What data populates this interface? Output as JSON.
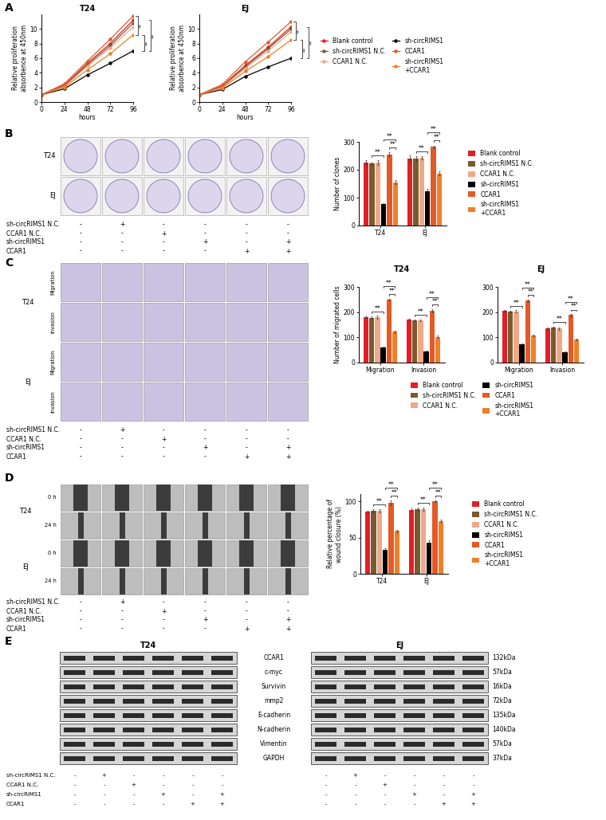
{
  "panel_labels": [
    "A",
    "B",
    "C",
    "D",
    "E"
  ],
  "chart_data": [
    {
      "type": "line",
      "title": "T24",
      "xlabel": "hours",
      "ylabel": "Relative proliferation\nabsorbence at 450nm",
      "x": [
        0,
        24,
        48,
        72,
        96
      ],
      "xlim": [
        0,
        96
      ],
      "xticks": [
        0,
        24,
        48,
        72,
        96
      ],
      "ylim": [
        0,
        12
      ],
      "yticks": [
        0,
        2,
        4,
        6,
        8,
        10
      ],
      "marker": "circle",
      "legend": "right",
      "series": [
        {
          "name": "Blank control",
          "color": "#e41e26",
          "values": [
            1,
            2.3,
            5.3,
            8.0,
            11.2
          ]
        },
        {
          "name": "sh-circRIMS1 N.C.",
          "color": "#7b5a2e",
          "values": [
            1,
            2.2,
            5.1,
            7.7,
            10.8
          ]
        },
        {
          "name": "CCAR1 N.C.",
          "color": "#f0a887",
          "values": [
            1,
            2.1,
            4.9,
            7.4,
            10.3
          ]
        },
        {
          "name": "sh-circRIMS1",
          "color": "#000000",
          "values": [
            1,
            1.8,
            3.7,
            5.3,
            7.0
          ]
        },
        {
          "name": "CCAR1",
          "color": "#e45a27",
          "values": [
            1,
            2.5,
            5.6,
            8.6,
            11.8
          ]
        },
        {
          "name": "sh-circRIMS1\n+CCAR1",
          "color": "#f07f2a",
          "values": [
            1,
            2.0,
            4.4,
            6.6,
            9.2
          ]
        }
      ],
      "annotations": [
        {
          "text": "**",
          "between": [
            "CCAR1",
            "sh-circRIMS1\n+CCAR1"
          ]
        },
        {
          "text": "**",
          "between": [
            "sh-circRIMS1\n+CCAR1",
            "sh-circRIMS1"
          ]
        },
        {
          "text": "**",
          "between": [
            "Blank control",
            "sh-circRIMS1"
          ]
        }
      ]
    },
    {
      "type": "line",
      "title": "EJ",
      "xlabel": "hours",
      "ylabel": "Relative proliferation\nabsorbence at 450nm",
      "x": [
        0,
        24,
        48,
        72,
        96
      ],
      "xlim": [
        0,
        96
      ],
      "xticks": [
        0,
        24,
        48,
        72,
        96
      ],
      "ylim": [
        0,
        12
      ],
      "yticks": [
        0,
        2,
        4,
        6,
        8,
        10
      ],
      "marker": "circle",
      "series": [
        {
          "name": "Blank control",
          "color": "#e41e26",
          "values": [
            1,
            2.2,
            5.0,
            7.5,
            10.3
          ]
        },
        {
          "name": "sh-circRIMS1 N.C.",
          "color": "#7b5a2e",
          "values": [
            1,
            2.1,
            4.8,
            7.3,
            10.0
          ]
        },
        {
          "name": "CCAR1 N.C.",
          "color": "#f0a887",
          "values": [
            1,
            2.0,
            4.6,
            7.0,
            9.6
          ]
        },
        {
          "name": "sh-circRIMS1",
          "color": "#000000",
          "values": [
            1,
            1.7,
            3.5,
            4.8,
            6.0
          ]
        },
        {
          "name": "CCAR1",
          "color": "#e45a27",
          "values": [
            1,
            2.4,
            5.5,
            8.2,
            11.0
          ]
        },
        {
          "name": "sh-circRIMS1\n+CCAR1",
          "color": "#f07f2a",
          "values": [
            1,
            1.9,
            4.2,
            6.2,
            8.5
          ]
        }
      ],
      "annotations": [
        {
          "text": "**",
          "between": [
            "CCAR1",
            "sh-circRIMS1\n+CCAR1"
          ]
        },
        {
          "text": "**",
          "between": [
            "sh-circRIMS1\n+CCAR1",
            "sh-circRIMS1"
          ]
        },
        {
          "text": "**",
          "between": [
            "Blank control",
            "sh-circRIMS1"
          ]
        }
      ]
    },
    {
      "type": "bar",
      "ylabel": "Number of clones",
      "categories": [
        "T24",
        "EJ"
      ],
      "ylim": [
        0,
        300
      ],
      "yticks": [
        0,
        100,
        200,
        300
      ],
      "legend": "right",
      "series": [
        {
          "name": "Blank control",
          "color": "#e41e26",
          "values": [
            225,
            240
          ],
          "errors": [
            9,
            12
          ]
        },
        {
          "name": "sh-circRIMS1 N.C.",
          "color": "#7b5a2e",
          "values": [
            222,
            240
          ],
          "errors": [
            5,
            8
          ]
        },
        {
          "name": "CCAR1 N.C.",
          "color": "#f0a887",
          "values": [
            225,
            243
          ],
          "errors": [
            8,
            6
          ]
        },
        {
          "name": "sh-circRIMS1",
          "color": "#000000",
          "values": [
            78,
            122
          ],
          "errors": [
            3,
            10
          ]
        },
        {
          "name": "CCAR1",
          "color": "#e45a27",
          "values": [
            255,
            282
          ],
          "errors": [
            7,
            5
          ]
        },
        {
          "name": "sh-circRIMS1\n+CCAR1",
          "color": "#f07f2a",
          "values": [
            155,
            187
          ],
          "errors": [
            7,
            8
          ]
        }
      ],
      "annotations": [
        {
          "text": "**",
          "category": "T24",
          "between": [
            "sh-circRIMS1 N.C.",
            "sh-circRIMS1"
          ]
        },
        {
          "text": "**",
          "category": "T24",
          "between": [
            "CCAR1",
            "sh-circRIMS1\n+CCAR1"
          ]
        },
        {
          "text": "**",
          "category": "T24",
          "between": [
            "sh-circRIMS1",
            "sh-circRIMS1\n+CCAR1"
          ]
        },
        {
          "text": "**",
          "category": "EJ",
          "between": [
            "sh-circRIMS1 N.C.",
            "sh-circRIMS1"
          ]
        },
        {
          "text": "**",
          "category": "EJ",
          "between": [
            "CCAR1",
            "sh-circRIMS1\n+CCAR1"
          ]
        },
        {
          "text": "**",
          "category": "EJ",
          "between": [
            "sh-circRIMS1",
            "sh-circRIMS1\n+CCAR1"
          ]
        }
      ]
    },
    {
      "type": "bar",
      "title": "T24",
      "ylabel": "Number of migrated cells",
      "categories": [
        "Migration",
        "Invasion"
      ],
      "ylim": [
        0,
        300
      ],
      "yticks": [
        0,
        100,
        200,
        300
      ],
      "legend": "lower",
      "series": [
        {
          "name": "Blank control",
          "color": "#e41e26",
          "values": [
            180,
            170
          ],
          "errors": [
            3,
            4
          ]
        },
        {
          "name": "sh-circRIMS1 N.C.",
          "color": "#7b5a2e",
          "values": [
            178,
            168
          ],
          "errors": [
            4,
            3
          ]
        },
        {
          "name": "CCAR1 N.C.",
          "color": "#f0a887",
          "values": [
            180,
            168
          ],
          "errors": [
            5,
            4
          ]
        },
        {
          "name": "sh-circRIMS1",
          "color": "#000000",
          "values": [
            60,
            45
          ],
          "errors": [
            4,
            3
          ]
        },
        {
          "name": "CCAR1",
          "color": "#e45a27",
          "values": [
            250,
            205
          ],
          "errors": [
            4,
            6
          ]
        },
        {
          "name": "sh-circRIMS1\n+CCAR1",
          "color": "#f07f2a",
          "values": [
            122,
            102
          ],
          "errors": [
            4,
            4
          ]
        }
      ],
      "annotations": [
        {
          "text": "**",
          "category": "Migration",
          "between": [
            "sh-circRIMS1 N.C.",
            "sh-circRIMS1"
          ]
        },
        {
          "text": "**",
          "category": "Migration",
          "between": [
            "CCAR1",
            "sh-circRIMS1\n+CCAR1"
          ]
        },
        {
          "text": "**",
          "category": "Migration",
          "between": [
            "sh-circRIMS1",
            "sh-circRIMS1\n+CCAR1"
          ]
        },
        {
          "text": "**",
          "category": "Invasion",
          "between": [
            "sh-circRIMS1 N.C.",
            "sh-circRIMS1"
          ]
        },
        {
          "text": "**",
          "category": "Invasion",
          "between": [
            "CCAR1",
            "sh-circRIMS1\n+CCAR1"
          ]
        },
        {
          "text": "**",
          "category": "Invasion",
          "between": [
            "sh-circRIMS1",
            "sh-circRIMS1\n+CCAR1"
          ]
        }
      ]
    },
    {
      "type": "bar",
      "title": "EJ",
      "categories": [
        "Migration",
        "Invasion"
      ],
      "ylim": [
        0,
        300
      ],
      "yticks": [
        0,
        100,
        200,
        300
      ],
      "series": [
        {
          "name": "Blank control",
          "color": "#e41e26",
          "values": [
            205,
            135
          ],
          "errors": [
            4,
            4
          ]
        },
        {
          "name": "sh-circRIMS1 N.C.",
          "color": "#7b5a2e",
          "values": [
            203,
            138
          ],
          "errors": [
            3,
            5
          ]
        },
        {
          "name": "CCAR1 N.C.",
          "color": "#f0a887",
          "values": [
            203,
            135
          ],
          "errors": [
            4,
            4
          ]
        },
        {
          "name": "sh-circRIMS1",
          "color": "#000000",
          "values": [
            72,
            40
          ],
          "errors": [
            3,
            4
          ]
        },
        {
          "name": "CCAR1",
          "color": "#e45a27",
          "values": [
            245,
            188
          ],
          "errors": [
            4,
            4
          ]
        },
        {
          "name": "sh-circRIMS1\n+CCAR1",
          "color": "#f07f2a",
          "values": [
            108,
            92
          ],
          "errors": [
            3,
            3
          ]
        }
      ],
      "annotations": [
        {
          "text": "**",
          "category": "Migration",
          "between": [
            "sh-circRIMS1 N.C.",
            "sh-circRIMS1"
          ]
        },
        {
          "text": "**",
          "category": "Migration",
          "between": [
            "CCAR1",
            "sh-circRIMS1\n+CCAR1"
          ]
        },
        {
          "text": "**",
          "category": "Migration",
          "between": [
            "sh-circRIMS1",
            "sh-circRIMS1\n+CCAR1"
          ]
        },
        {
          "text": "**",
          "category": "Invasion",
          "between": [
            "sh-circRIMS1 N.C.",
            "sh-circRIMS1"
          ]
        },
        {
          "text": "**",
          "category": "Invasion",
          "between": [
            "CCAR1",
            "sh-circRIMS1\n+CCAR1"
          ]
        },
        {
          "text": "**",
          "category": "Invasion",
          "between": [
            "sh-circRIMS1",
            "sh-circRIMS1\n+CCAR1"
          ]
        }
      ]
    },
    {
      "type": "bar",
      "ylabel": "Relative percentage of\nwound closure (%)",
      "categories": [
        "T24",
        "EJ"
      ],
      "ylim": [
        0,
        110
      ],
      "yticks": [
        0,
        50,
        100
      ],
      "legend": "right",
      "series": [
        {
          "name": "Blank control",
          "color": "#e41e26",
          "values": [
            86,
            88
          ],
          "errors": [
            1,
            2
          ]
        },
        {
          "name": "sh-circRIMS1 N.C.",
          "color": "#7b5a2e",
          "values": [
            87,
            89
          ],
          "errors": [
            2,
            2
          ]
        },
        {
          "name": "CCAR1 N.C.",
          "color": "#f0a887",
          "values": [
            87,
            89
          ],
          "errors": [
            2,
            2
          ]
        },
        {
          "name": "sh-circRIMS1",
          "color": "#000000",
          "values": [
            33,
            43
          ],
          "errors": [
            2,
            3
          ]
        },
        {
          "name": "CCAR1",
          "color": "#e45a27",
          "values": [
            98,
            100
          ],
          "errors": [
            3,
            1
          ]
        },
        {
          "name": "sh-circRIMS1\n+CCAR1",
          "color": "#f07f2a",
          "values": [
            59,
            73
          ],
          "errors": [
            2,
            2
          ]
        }
      ],
      "annotations": [
        {
          "text": "**",
          "category": "T24",
          "between": [
            "sh-circRIMS1 N.C.",
            "sh-circRIMS1"
          ]
        },
        {
          "text": "**",
          "category": "T24",
          "between": [
            "CCAR1",
            "sh-circRIMS1\n+CCAR1"
          ]
        },
        {
          "text": "**",
          "category": "T24",
          "between": [
            "sh-circRIMS1",
            "sh-circRIMS1\n+CCAR1"
          ]
        },
        {
          "text": "**",
          "category": "EJ",
          "between": [
            "sh-circRIMS1 N.C.",
            "sh-circRIMS1"
          ]
        },
        {
          "text": "**",
          "category": "EJ",
          "between": [
            "CCAR1",
            "sh-circRIMS1\n+CCAR1"
          ]
        },
        {
          "text": "**",
          "category": "EJ",
          "between": [
            "sh-circRIMS1",
            "sh-circRIMS1\n+CCAR1"
          ]
        }
      ]
    }
  ],
  "conditions": {
    "labels": [
      "sh-circRIMS1 N.C.",
      "CCAR1 N.C.",
      "sh-circRIMS1",
      "CCAR1"
    ],
    "matrix": [
      [
        "-",
        "+",
        "-",
        "-",
        "-",
        "-"
      ],
      [
        "-",
        "-",
        "+",
        "-",
        "-",
        "-"
      ],
      [
        "-",
        "-",
        "-",
        "+",
        "-",
        "+"
      ],
      [
        "-",
        "-",
        "-",
        "-",
        "+",
        "+"
      ]
    ]
  },
  "images": {
    "B": {
      "cell_lines": [
        "T24",
        "EJ"
      ]
    },
    "C": {
      "cell_lines": [
        "T24",
        "EJ"
      ],
      "rows": [
        "Migration",
        "Invasion"
      ]
    },
    "D": {
      "cell_lines": [
        "T24",
        "EJ"
      ],
      "rows": [
        "0 h",
        "24 h"
      ]
    }
  },
  "western_blot": {
    "cell_lines": [
      "T24",
      "EJ"
    ],
    "proteins": [
      {
        "name": "CCAR1",
        "size": "132kDa"
      },
      {
        "name": "c-myc",
        "size": "57kDa"
      },
      {
        "name": "Survivin",
        "size": "16kDa"
      },
      {
        "name": "mmp2",
        "size": "72kDa"
      },
      {
        "name": "E-cadherin",
        "size": "135kDa"
      },
      {
        "name": "N-cadherin",
        "size": "140kDa"
      },
      {
        "name": "Vimentin",
        "size": "57kDa"
      },
      {
        "name": "GAPDH",
        "size": "37kDa"
      }
    ]
  }
}
